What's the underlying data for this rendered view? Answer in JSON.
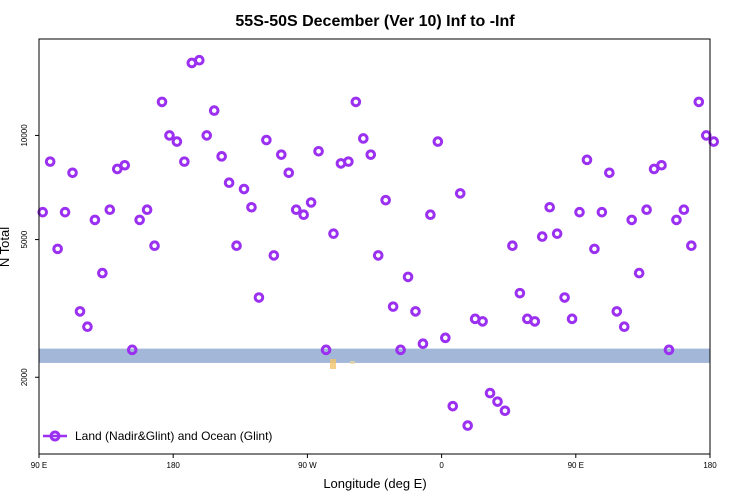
{
  "chart_data": {
    "type": "scatter",
    "title": "55S-50S December (Ver 10)   Inf to -Inf",
    "xlabel": "Longitude (deg E)",
    "ylabel": "N Total",
    "xlim": [
      0,
      360
    ],
    "ylim_log": [
      1200,
      19000
    ],
    "y_scale": "log",
    "x_ticks": [
      {
        "value": 0,
        "label": "90 E"
      },
      {
        "value": 72,
        "label": "180"
      },
      {
        "value": 144,
        "label": "90 W"
      },
      {
        "value": 216,
        "label": "0"
      },
      {
        "value": 288,
        "label": "90 E"
      },
      {
        "value": 360,
        "label": "180"
      }
    ],
    "y_ticks": [
      {
        "value": 2000,
        "label": "2000"
      },
      {
        "value": 5000,
        "label": "5000"
      },
      {
        "value": 10000,
        "label": "10000"
      }
    ],
    "land_band": {
      "y_low": 2200,
      "y_high": 2420,
      "color": "#a3b8d8"
    },
    "series": [
      {
        "name": "Land (Nadir&Glint) and Ocean (Glint)",
        "color": "#9b30f0",
        "marker": "open-circle",
        "x": [
          2,
          6,
          10,
          14,
          18,
          22,
          26,
          30,
          34,
          38,
          42,
          46,
          50,
          54,
          58,
          62,
          66,
          70,
          74,
          78,
          82,
          86,
          90,
          94,
          98,
          102,
          106,
          110,
          114,
          118,
          122,
          126,
          130,
          134,
          138,
          142,
          146,
          150,
          154,
          158,
          162,
          166,
          170,
          174,
          178,
          182,
          186,
          190,
          194,
          198,
          202,
          206,
          210,
          214,
          218,
          222,
          226,
          230,
          234,
          238,
          242,
          246,
          250,
          254,
          258,
          262,
          266,
          270,
          274,
          278,
          282,
          286,
          290,
          294,
          298,
          302,
          306,
          310,
          314,
          318,
          322,
          326,
          330,
          334,
          338,
          342,
          346,
          350,
          354,
          358,
          362
        ],
        "y": [
          6000,
          8400,
          4700,
          6000,
          7800,
          3100,
          2800,
          5700,
          4000,
          6100,
          8000,
          8200,
          2400,
          5700,
          6100,
          4800,
          12500,
          10000,
          9600,
          8400,
          16200,
          16500,
          10000,
          11800,
          8700,
          7300,
          4800,
          7000,
          6200,
          3400,
          9700,
          4500,
          8800,
          7800,
          6100,
          5900,
          6400,
          9000,
          2400,
          5200,
          8300,
          8400,
          12500,
          9800,
          8800,
          4500,
          6500,
          3200,
          2400,
          3900,
          3100,
          2500,
          5900,
          9600,
          2600,
          1650,
          6800,
          1450,
          2950,
          2900,
          1800,
          1700,
          1600,
          4800,
          3500,
          2950,
          2900,
          5100,
          6200,
          5200,
          3400,
          2950,
          6000,
          8500,
          4700,
          6000,
          7800,
          3100,
          2800,
          5700,
          4000,
          6100,
          8000,
          8200,
          2400,
          5700,
          6100,
          4800,
          12500,
          10000,
          9600
        ]
      }
    ],
    "legend": {
      "position": "bottom-left",
      "label": "Land (Nadir&Glint) and Ocean (Glint)"
    }
  }
}
